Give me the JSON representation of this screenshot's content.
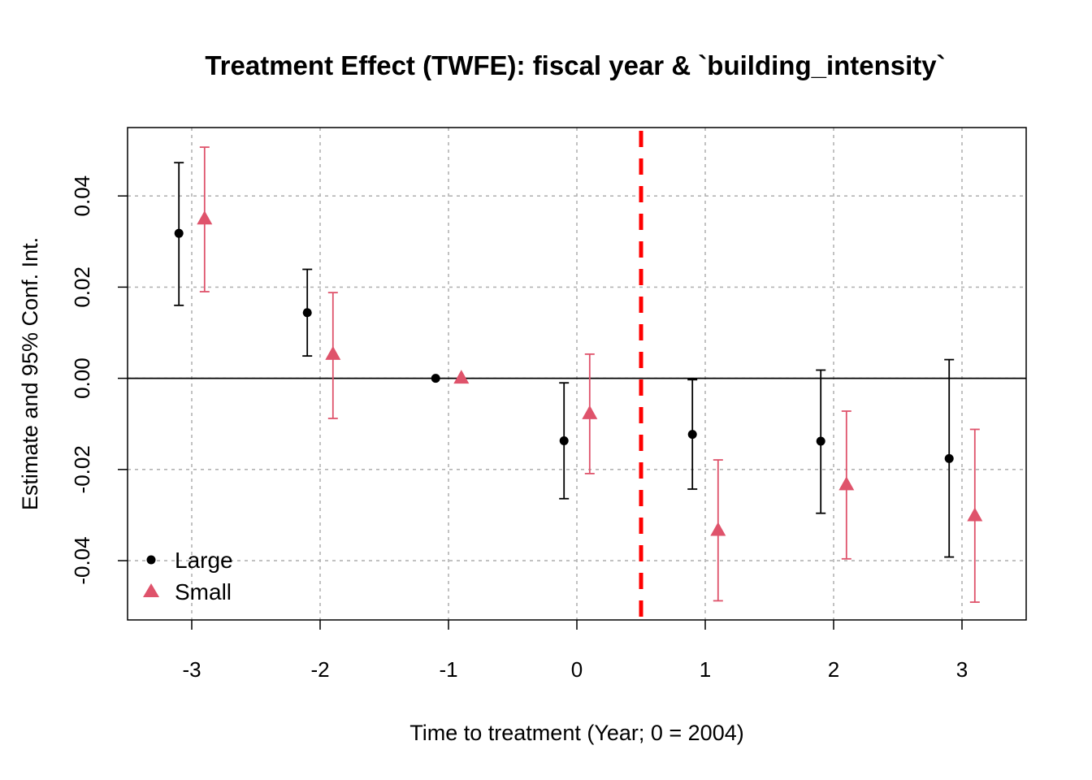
{
  "chart_data": {
    "type": "scatter",
    "title": "Treatment Effect (TWFE): fiscal year & `building_intensity`",
    "xlabel": "Time to treatment (Year; 0 = 2004)",
    "ylabel": "Estimate and 95% Conf. Int.",
    "x_ticks": [
      "-3",
      "-2",
      "-1",
      "0",
      "1",
      "2",
      "3"
    ],
    "y_ticks": [
      "-0.04",
      "-0.02",
      "0.00",
      "0.02",
      "0.04"
    ],
    "xlim": [
      -3.5,
      3.5
    ],
    "ylim": [
      -0.053,
      0.055
    ],
    "grid": true,
    "reference_line_y": 0,
    "treatment_line_x": 0.5,
    "legend_position": "bottom-left",
    "series": [
      {
        "name": "Large",
        "color": "#000000",
        "marker": "circle",
        "x": [
          -3,
          -2,
          -1,
          0,
          1,
          2,
          3
        ],
        "estimate": [
          0.0318,
          0.0144,
          0.0,
          -0.0137,
          -0.0123,
          -0.0138,
          -0.0176
        ],
        "ci_low": [
          0.016,
          0.0049,
          0.0,
          -0.0264,
          -0.0243,
          -0.0296,
          -0.0392
        ],
        "ci_high": [
          0.0473,
          0.0239,
          0.0,
          -0.001,
          -0.0003,
          0.0018,
          0.0041
        ]
      },
      {
        "name": "Small",
        "color": "#DF536B",
        "marker": "triangle",
        "x": [
          -3,
          -2,
          -1,
          0,
          1,
          2,
          3
        ],
        "estimate": [
          0.0349,
          0.0052,
          0.0,
          -0.0078,
          -0.0334,
          -0.0234,
          -0.0302
        ],
        "ci_low": [
          0.019,
          -0.0088,
          0.0,
          -0.0209,
          -0.0488,
          -0.0396,
          -0.0491
        ],
        "ci_high": [
          0.0507,
          0.0188,
          0.0,
          0.0053,
          -0.0179,
          -0.0072,
          -0.0112
        ]
      }
    ]
  }
}
